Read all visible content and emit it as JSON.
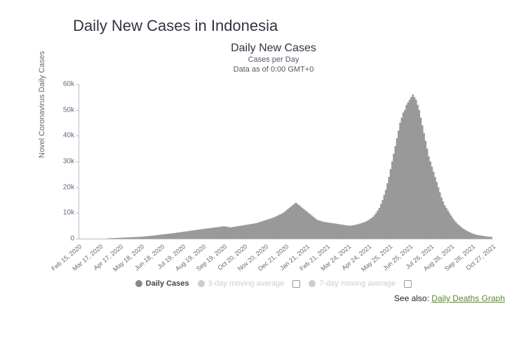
{
  "page_title": "Daily New Cases in Indonesia",
  "chart": {
    "type": "bar",
    "title": "Daily New Cases",
    "subtitle_line1": "Cases per Day",
    "subtitle_line2": "Data as of 0:00 GMT+0",
    "y_axis_label": "Novel Coronavirus Daily Cases",
    "ylim": [
      0,
      60000
    ],
    "ytick_step": 10000,
    "ytick_labels": [
      "0",
      "10k",
      "20k",
      "30k",
      "40k",
      "50k",
      "60k"
    ],
    "x_tick_labels": [
      "Feb 15, 2020",
      "Mar 17, 2020",
      "Apr 17, 2020",
      "May 18, 2020",
      "Jun 18, 2020",
      "Jul 19, 2020",
      "Aug 19, 2020",
      "Sep 19, 2020",
      "Oct 20, 2020",
      "Nov 20, 2020",
      "Dec 21, 2020",
      "Jan 21, 2021",
      "Feb 21, 2021",
      "Mar 24, 2021",
      "Apr 24, 2021",
      "May 25, 2021",
      "Jun 25, 2021",
      "Jul 26, 2021",
      "Aug 26, 2021",
      "Sep 26, 2021",
      "Oct 27, 2021"
    ],
    "bar_color": "#999999",
    "axis_color": "#bbbbcc",
    "text_color": "#666677",
    "background_color": "#ffffff",
    "series": [
      0,
      0,
      0,
      0,
      0,
      0,
      0,
      0,
      0,
      0,
      0,
      0,
      0,
      0,
      0,
      0,
      0,
      0,
      0,
      0,
      0,
      0,
      0,
      0,
      0,
      0,
      0,
      0,
      0,
      0,
      0,
      0,
      0,
      0,
      50,
      50,
      100,
      100,
      150,
      150,
      200,
      200,
      200,
      250,
      250,
      300,
      300,
      300,
      300,
      300,
      350,
      350,
      350,
      350,
      400,
      400,
      400,
      400,
      450,
      450,
      450,
      500,
      500,
      500,
      550,
      550,
      550,
      550,
      600,
      600,
      600,
      600,
      650,
      650,
      700,
      700,
      700,
      750,
      750,
      750,
      800,
      800,
      800,
      900,
      900,
      900,
      1000,
      1000,
      1000,
      1100,
      1100,
      1100,
      1200,
      1200,
      1200,
      1300,
      1300,
      1300,
      1400,
      1400,
      1500,
      1500,
      1500,
      1600,
      1600,
      1700,
      1700,
      1700,
      1800,
      1800,
      1800,
      1900,
      1900,
      1900,
      2000,
      2000,
      2000,
      2100,
      2100,
      2200,
      2200,
      2200,
      2300,
      2300,
      2400,
      2400,
      2500,
      2500,
      2500,
      2600,
      2600,
      2700,
      2700,
      2800,
      2800,
      2800,
      2900,
      2900,
      3000,
      3000,
      3100,
      3100,
      3200,
      3200,
      3200,
      3300,
      3300,
      3400,
      3400,
      3500,
      3500,
      3500,
      3600,
      3600,
      3700,
      3700,
      3800,
      3800,
      3900,
      3900,
      3900,
      4000,
      4000,
      4000,
      4100,
      4100,
      4200,
      4200,
      4200,
      4300,
      4300,
      4400,
      4400,
      4400,
      4500,
      4500,
      4600,
      4600,
      4600,
      4700,
      4700,
      4800,
      4800,
      4800,
      4700,
      4700,
      4600,
      4600,
      4500,
      4500,
      4400,
      4400,
      4500,
      4500,
      4600,
      4600,
      4700,
      4700,
      4800,
      4800,
      4900,
      4900,
      5000,
      5000,
      5100,
      5100,
      5200,
      5200,
      5300,
      5300,
      5400,
      5400,
      5500,
      5500,
      5600,
      5600,
      5700,
      5700,
      5800,
      5800,
      5900,
      5900,
      6000,
      6000,
      6200,
      6200,
      6400,
      6400,
      6600,
      6600,
      6800,
      6800,
      7000,
      7000,
      7200,
      7200,
      7400,
      7400,
      7600,
      7600,
      7800,
      7800,
      8000,
      8000,
      8200,
      8200,
      8500,
      8500,
      8800,
      8800,
      9100,
      9100,
      9400,
      9400,
      9700,
      9700,
      10000,
      10000,
      10500,
      10500,
      11000,
      11000,
      11500,
      11500,
      12000,
      12000,
      12500,
      12500,
      13000,
      13000,
      13500,
      13500,
      14000,
      14000,
      13500,
      13500,
      13000,
      13000,
      12500,
      12500,
      12000,
      12000,
      11500,
      11500,
      11000,
      11000,
      10500,
      10500,
      10000,
      10000,
      9500,
      9500,
      9000,
      9000,
      8500,
      8500,
      8000,
      8000,
      7500,
      7500,
      7200,
      7200,
      7000,
      7000,
      6800,
      6800,
      6600,
      6600,
      6500,
      6500,
      6400,
      6400,
      6300,
      6300,
      6200,
      6200,
      6100,
      6100,
      6000,
      6000,
      6000,
      5900,
      5900,
      5800,
      5800,
      5700,
      5700,
      5600,
      5600,
      5500,
      5500,
      5400,
      5400,
      5300,
      5300,
      5200,
      5200,
      5100,
      5100,
      5000,
      5000,
      5100,
      5100,
      5200,
      5200,
      5300,
      5300,
      5400,
      5400,
      5500,
      5500,
      5700,
      5700,
      5900,
      5900,
      6100,
      6100,
      6300,
      6300,
      6500,
      6500,
      6800,
      6800,
      7200,
      7200,
      7600,
      7600,
      8000,
      8000,
      8500,
      8500,
      9200,
      9200,
      10000,
      10000,
      11000,
      11000,
      12000,
      12000,
      13500,
      13500,
      15000,
      15000,
      17000,
      17000,
      19000,
      19000,
      21500,
      21500,
      24000,
      24000,
      27000,
      27000,
      30000,
      30000,
      33000,
      33000,
      36000,
      36000,
      39000,
      39000,
      42000,
      42000,
      45000,
      45000,
      47000,
      47000,
      49000,
      49000,
      50000,
      50000,
      52000,
      52000,
      53000,
      53000,
      54000,
      54000,
      55000,
      55000,
      56000,
      56000,
      55000,
      55000,
      54000,
      54000,
      52000,
      52000,
      50000,
      50000,
      47000,
      47000,
      44000,
      44000,
      41000,
      41000,
      38000,
      38000,
      35000,
      35000,
      32000,
      32000,
      30000,
      30000,
      28000,
      28000,
      26000,
      26000,
      24000,
      24000,
      22000,
      22000,
      20000,
      20000,
      18000,
      18000,
      16000,
      16000,
      14500,
      14500,
      13000,
      13000,
      12000,
      12000,
      11000,
      11000,
      10000,
      10000,
      9000,
      9000,
      8000,
      8000,
      7200,
      7200,
      6500,
      6500,
      5800,
      5800,
      5200,
      5200,
      4700,
      4700,
      4200,
      4200,
      3800,
      3800,
      3400,
      3400,
      3000,
      3000,
      2700,
      2700,
      2400,
      2400,
      2100,
      2100,
      1900,
      1900,
      1700,
      1700,
      1500,
      1500,
      1400,
      1400,
      1300,
      1300,
      1200,
      1200,
      1100,
      1100,
      1000,
      1000,
      900,
      900,
      800,
      800,
      800,
      700,
      700,
      700,
      700
    ],
    "legend": {
      "daily_cases": "Daily Cases",
      "ma3": "3-day moving average",
      "ma7": "7-day moving average",
      "active_color": "#888888",
      "inactive_color": "#cccccc"
    }
  },
  "footer": {
    "see_also_label": "See also:",
    "see_also_link_text": "Daily Deaths Graph"
  }
}
